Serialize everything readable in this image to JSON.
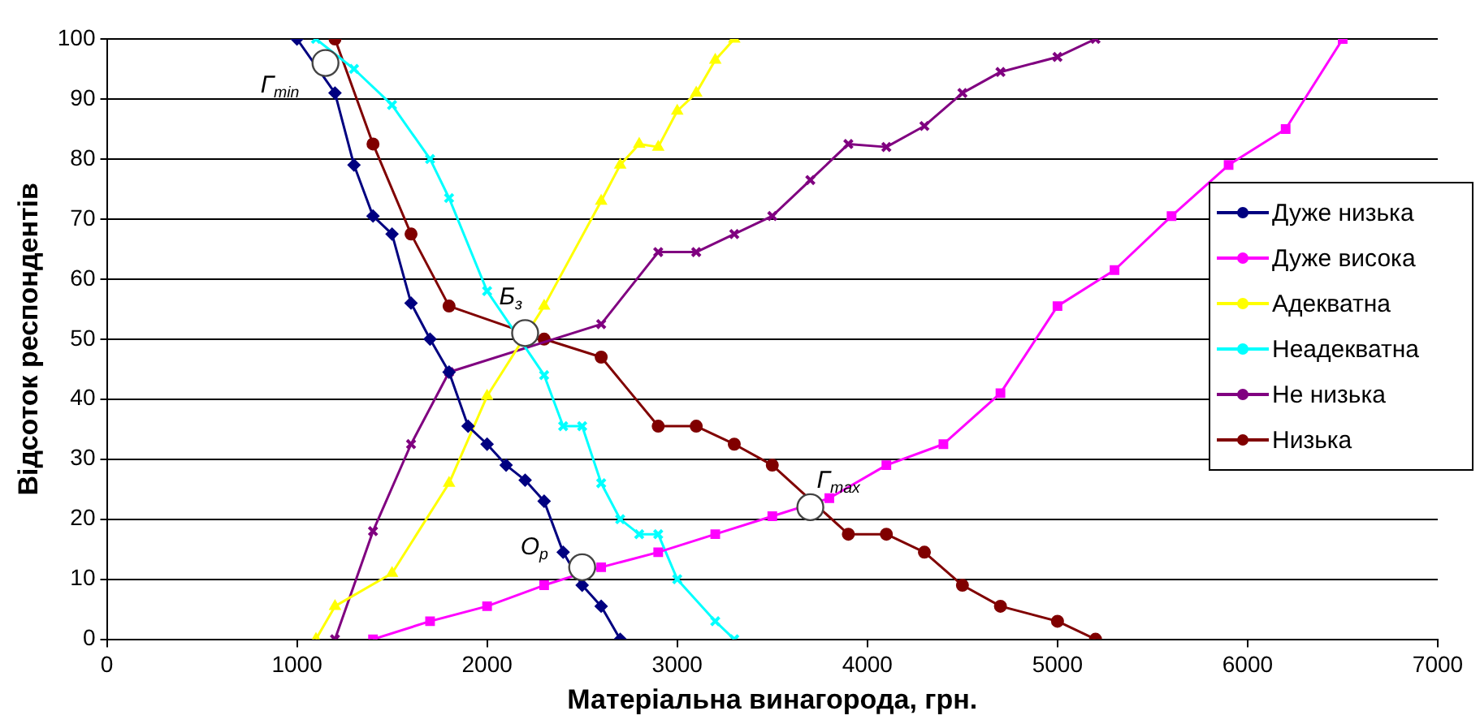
{
  "chart_data": {
    "type": "line",
    "xlabel": "Матеріальна винагорода, грн.",
    "ylabel": "Відсоток респондентів",
    "xlim": [
      0,
      7000
    ],
    "xticks": [
      0,
      1000,
      2000,
      3000,
      4000,
      5000,
      6000,
      7000
    ],
    "ylim": [
      0,
      100
    ],
    "yticks": [
      0,
      10,
      20,
      30,
      40,
      50,
      60,
      70,
      80,
      90,
      100
    ],
    "grid": "y",
    "legend": "right",
    "line_style": "solid",
    "series": [
      {
        "name": "Дуже низька",
        "color": "#000080",
        "marker": "diamond",
        "x": [
          1000,
          1200,
          1300,
          1400,
          1500,
          1600,
          1700,
          1800,
          1900,
          2000,
          2100,
          2200,
          2300,
          2400,
          2500,
          2600,
          2700
        ],
        "values": [
          100,
          91,
          79,
          70.5,
          67.5,
          56,
          50,
          44.5,
          35.5,
          32.5,
          29,
          26.5,
          23,
          14.5,
          9,
          5.5,
          0
        ]
      },
      {
        "name": "Дуже висока",
        "color": "#ff00ff",
        "marker": "square",
        "x": [
          1400,
          1700,
          2000,
          2300,
          2600,
          2900,
          3200,
          3500,
          3800,
          4100,
          4400,
          4700,
          5000,
          5300,
          5600,
          5900,
          6200,
          6500
        ],
        "values": [
          0,
          3,
          5.5,
          9,
          12,
          14.5,
          17.5,
          20.5,
          23.5,
          29,
          32.5,
          41,
          55.5,
          61.5,
          70.5,
          79,
          85,
          100
        ]
      },
      {
        "name": "Адекватна",
        "color": "#ffff00",
        "marker": "triangle",
        "x": [
          1100,
          1200,
          1500,
          1800,
          2000,
          2300,
          2600,
          2700,
          2800,
          2900,
          3000,
          3100,
          3200,
          3300
        ],
        "values": [
          0,
          5.5,
          11,
          26,
          40.5,
          55.5,
          73,
          79,
          82.5,
          82,
          88,
          91,
          96.5,
          100
        ]
      },
      {
        "name": "Неадекватна",
        "color": "#00ffff",
        "marker": "cross",
        "x": [
          1100,
          1300,
          1500,
          1700,
          1800,
          2000,
          2300,
          2400,
          2500,
          2600,
          2700,
          2800,
          2900,
          3000,
          3200,
          3300
        ],
        "values": [
          100,
          95,
          89,
          80,
          73.5,
          58,
          44,
          35.5,
          35.5,
          26,
          20,
          17.5,
          17.5,
          10,
          3,
          0
        ]
      },
      {
        "name": "Не низька",
        "color": "#800080",
        "marker": "cross",
        "x": [
          1200,
          1400,
          1600,
          1800,
          2600,
          2900,
          3100,
          3300,
          3500,
          3700,
          3900,
          4100,
          4300,
          4500,
          4700,
          5000,
          5200
        ],
        "values": [
          0,
          18,
          32.5,
          44.5,
          52.5,
          64.5,
          64.5,
          67.5,
          70.5,
          76.5,
          82.5,
          82,
          85.5,
          91,
          94.5,
          97,
          100
        ]
      },
      {
        "name": "Низька",
        "color": "#800000",
        "marker": "circle",
        "x": [
          1200,
          1400,
          1600,
          1800,
          2300,
          2600,
          2900,
          3100,
          3300,
          3500,
          3900,
          4100,
          4300,
          4500,
          4700,
          5000,
          5200
        ],
        "values": [
          100,
          82.5,
          67.5,
          55.5,
          50,
          47,
          35.5,
          35.5,
          32.5,
          29,
          17.5,
          17.5,
          14.5,
          9,
          5.5,
          3,
          0
        ]
      }
    ],
    "annotations": [
      {
        "text": "Г$_{min}$",
        "x": 1150,
        "y": 96
      },
      {
        "text": "Б$_{з}$",
        "x": 2200,
        "y": 51
      },
      {
        "text": "О$_{р}$",
        "x": 2500,
        "y": 12
      },
      {
        "text": "Г$_{max}$",
        "x": 3700,
        "y": 22
      }
    ]
  }
}
